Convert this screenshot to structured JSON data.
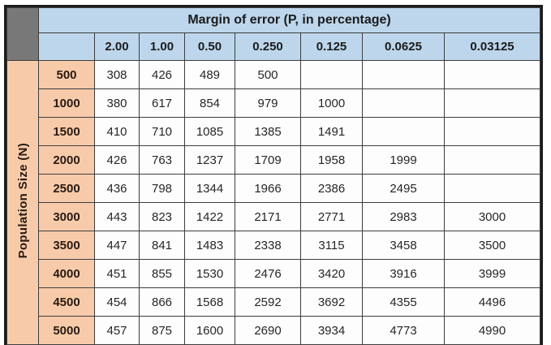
{
  "table": {
    "col_group_header": "Margin of error (P, in percentage)",
    "row_group_header": "Population Size (N)",
    "corner_label": "",
    "blank_header_cell": "",
    "columns": [
      "2.00",
      "1.00",
      "0.50",
      "0.250",
      "0.125",
      "0.0625",
      "0.03125"
    ],
    "rows": [
      {
        "label": "500",
        "values": [
          "308",
          "426",
          "489",
          "500",
          "",
          "",
          ""
        ]
      },
      {
        "label": "1000",
        "values": [
          "380",
          "617",
          "854",
          "979",
          "1000",
          "",
          ""
        ]
      },
      {
        "label": "1500",
        "values": [
          "410",
          "710",
          "1085",
          "1385",
          "1491",
          "",
          ""
        ]
      },
      {
        "label": "2000",
        "values": [
          "426",
          "763",
          "1237",
          "1709",
          "1958",
          "1999",
          ""
        ]
      },
      {
        "label": "2500",
        "values": [
          "436",
          "798",
          "1344",
          "1966",
          "2386",
          "2495",
          ""
        ]
      },
      {
        "label": "3000",
        "values": [
          "443",
          "823",
          "1422",
          "2171",
          "2771",
          "2983",
          "3000"
        ]
      },
      {
        "label": "3500",
        "values": [
          "447",
          "841",
          "1483",
          "2338",
          "3115",
          "3458",
          "3500"
        ]
      },
      {
        "label": "4000",
        "values": [
          "451",
          "855",
          "1530",
          "2476",
          "3420",
          "3916",
          "3999"
        ]
      },
      {
        "label": "4500",
        "values": [
          "454",
          "866",
          "1568",
          "2592",
          "3692",
          "4355",
          "4496"
        ]
      },
      {
        "label": "5000",
        "values": [
          "457",
          "875",
          "1600",
          "2690",
          "3934",
          "4773",
          "4990"
        ]
      }
    ]
  },
  "colors": {
    "header_blue": "#bdd6ec",
    "row_band_peach": "#f7cbaa",
    "corner_gray": "#787878",
    "grid_line": "#3d3d3d",
    "outer_border": "#1c1c1c",
    "data_cell_bg": "#fdfdfd",
    "text": "#1b1b1b"
  },
  "chart_data": {
    "type": "table",
    "title": "Margin of error (P, in percentage)",
    "xlabel": "Margin of error (P, in percentage)",
    "ylabel": "Population Size (N)",
    "categories": [
      "2.00",
      "1.00",
      "0.50",
      "0.250",
      "0.125",
      "0.0625",
      "0.03125"
    ],
    "series": [
      {
        "name": "500",
        "values": [
          308,
          426,
          489,
          500,
          null,
          null,
          null
        ]
      },
      {
        "name": "1000",
        "values": [
          380,
          617,
          854,
          979,
          1000,
          null,
          null
        ]
      },
      {
        "name": "1500",
        "values": [
          410,
          710,
          1085,
          1385,
          1491,
          null,
          null
        ]
      },
      {
        "name": "2000",
        "values": [
          426,
          763,
          1237,
          1709,
          1958,
          1999,
          null
        ]
      },
      {
        "name": "2500",
        "values": [
          436,
          798,
          1344,
          1966,
          2386,
          2495,
          null
        ]
      },
      {
        "name": "3000",
        "values": [
          443,
          823,
          1422,
          2171,
          2771,
          2983,
          3000
        ]
      },
      {
        "name": "3500",
        "values": [
          447,
          841,
          1483,
          2338,
          3115,
          3458,
          3500
        ]
      },
      {
        "name": "4000",
        "values": [
          451,
          855,
          1530,
          2476,
          3420,
          3916,
          3999
        ]
      },
      {
        "name": "4500",
        "values": [
          454,
          866,
          1568,
          2592,
          3692,
          4355,
          4496
        ]
      },
      {
        "name": "5000",
        "values": [
          457,
          875,
          1600,
          2690,
          3934,
          4773,
          4990
        ]
      }
    ]
  }
}
